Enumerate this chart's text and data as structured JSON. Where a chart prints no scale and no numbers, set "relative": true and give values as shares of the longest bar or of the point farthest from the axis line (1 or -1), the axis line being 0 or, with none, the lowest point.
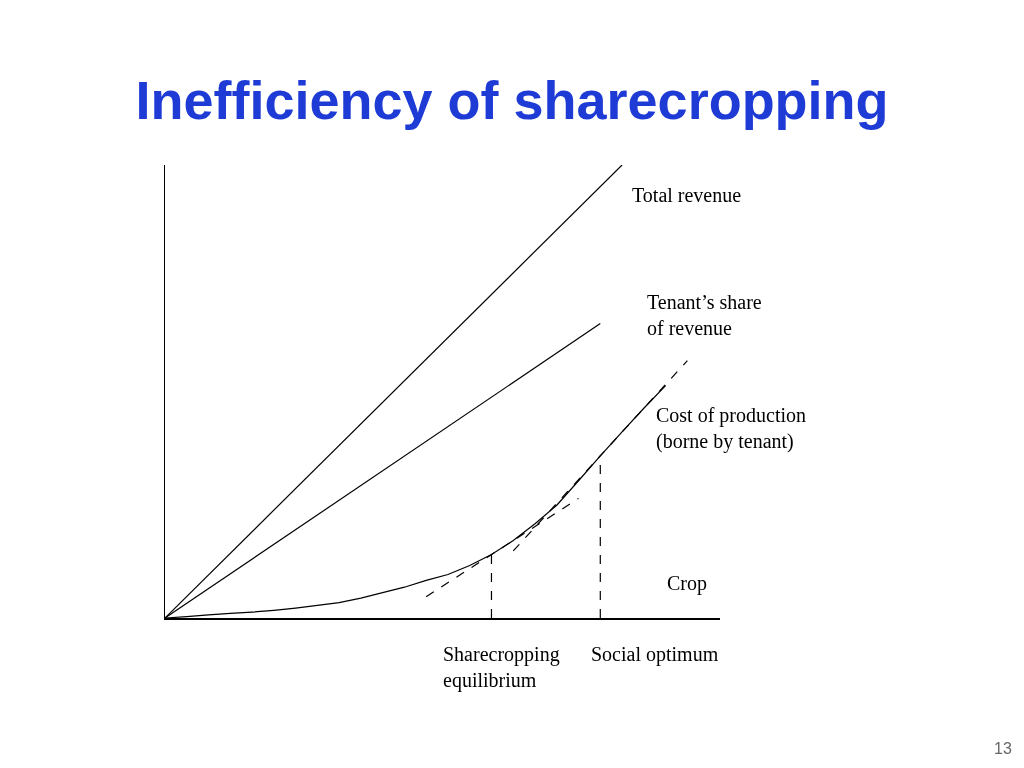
{
  "chart_data": {
    "type": "line",
    "title": "Inefficiency of sharecropping",
    "xlabel": "Crop",
    "relative": true,
    "grid": false,
    "legend": false,
    "marker": "none",
    "line_style": "solid",
    "categories": [
      null,
      null,
      null,
      null,
      null,
      null,
      null,
      null,
      null,
      null,
      null,
      null,
      null,
      null,
      null,
      null,
      null,
      null,
      null,
      null,
      null,
      null,
      null,
      null,
      null,
      null
    ],
    "series": [
      {
        "name": "Total revenue",
        "color": "#000000",
        "values": [
          0,
          null,
          null,
          null,
          null,
          null,
          null,
          null,
          null,
          null,
          null,
          null,
          null,
          null,
          null,
          null,
          null,
          null,
          null,
          null,
          null,
          1.0,
          null,
          null,
          null,
          null
        ]
      },
      {
        "name": "Tenant’s share\nof revenue",
        "color": "#000000",
        "values": [
          0,
          null,
          null,
          null,
          null,
          null,
          null,
          null,
          null,
          null,
          null,
          null,
          null,
          null,
          null,
          null,
          null,
          null,
          null,
          null,
          0.65,
          null,
          null,
          null,
          null,
          null
        ]
      },
      {
        "name": "Cost of production\n(borne by tenant)",
        "color": "#000000",
        "values": [
          0,
          0.003,
          0.007,
          0.01,
          0.013,
          0.017,
          0.022,
          0.028,
          0.034,
          0.044,
          0.056,
          0.068,
          0.083,
          0.096,
          0.116,
          0.14,
          0.171,
          0.208,
          0.249,
          0.303,
          0.358,
          0.411,
          0.463,
          0.513,
          null,
          null
        ]
      },
      {
        "color": "#000000",
        "line_style": "dashed",
        "values": [
          null,
          null,
          null,
          null,
          null,
          null,
          null,
          null,
          null,
          null,
          null,
          null,
          0.047,
          null,
          null,
          null,
          null,
          null,
          null,
          0.264,
          null,
          null,
          null,
          null,
          null,
          null
        ]
      },
      {
        "color": "#000000",
        "line_style": "dashed",
        "values": [
          null,
          null,
          null,
          null,
          null,
          null,
          null,
          null,
          null,
          null,
          null,
          null,
          null,
          null,
          null,
          null,
          0.148,
          null,
          null,
          null,
          null,
          null,
          null,
          null,
          0.568,
          null
        ]
      }
    ],
    "annotations": [
      "Sharecropping\nequilibrium",
      "Social optimum",
      "13"
    ]
  }
}
